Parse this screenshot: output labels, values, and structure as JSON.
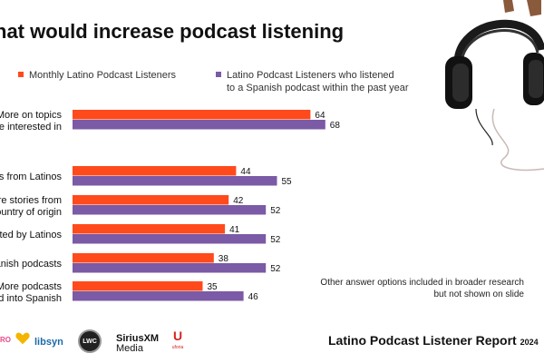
{
  "title": "hat would increase podcast listening",
  "legend": {
    "series1": "Monthly Latino Podcast Listeners",
    "series2_line1": "Latino Podcast Listeners  who listened",
    "series2_line2": "to a Spanish podcast within the past year"
  },
  "colors": {
    "series1": "#ff4a1c",
    "series2": "#7b5aa6"
  },
  "chart_data": {
    "type": "bar",
    "orientation": "horizontal",
    "title": "hat would increase podcast listening",
    "categories": [
      [
        "More on topics",
        "re interested in"
      ],
      [
        "es from Latinos"
      ],
      [
        "re stories from",
        "ountry of origin"
      ],
      [
        "sted by Latinos"
      ],
      [
        "anish podcasts"
      ],
      [
        "More podcasts",
        "d into Spanish"
      ]
    ],
    "series": [
      {
        "name": "Monthly Latino Podcast Listeners",
        "values": [
          64,
          44,
          42,
          41,
          38,
          35
        ]
      },
      {
        "name": "Latino Podcast Listeners  who listened to a Spanish podcast within the past year",
        "values": [
          68,
          55,
          52,
          52,
          52,
          46
        ]
      }
    ],
    "xlim": [
      0,
      100
    ],
    "grid": false,
    "legend_position": "top"
  },
  "note": "Other answer options included in broader research but not shown on slide",
  "report": {
    "title": "Latino Podcast Listener Report",
    "year": "2024"
  },
  "logos": {
    "podcast": "RO",
    "libsyn": "libsyn",
    "lwc": "LWC",
    "sirius_line1": "SiriusXM",
    "sirius_line2": "Media",
    "uforia_mark": "U",
    "uforia_text": "uforia"
  }
}
